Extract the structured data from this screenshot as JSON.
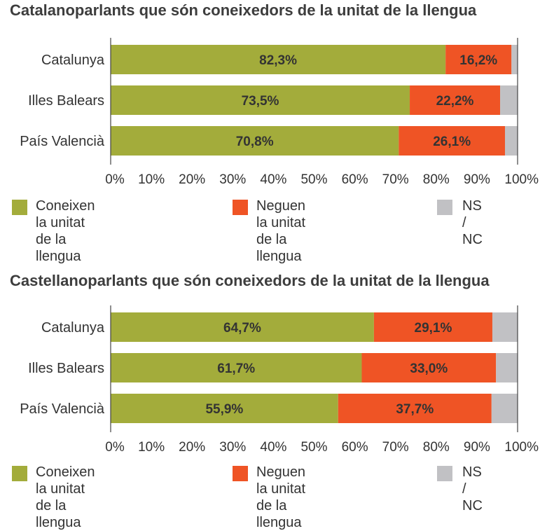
{
  "colors": {
    "green": "#a3ac3b",
    "orange": "#ef5425",
    "grey": "#c1c1c4"
  },
  "legend": {
    "know_line1": "Coneixen la unitat",
    "know_line2": "de la llengua",
    "deny_line1": "Neguen la unitat",
    "deny_line2": "de la llengua",
    "nsnc": "NS / NC"
  },
  "chart_data": [
    {
      "type": "bar",
      "stacked": true,
      "orientation": "horizontal",
      "title": "Catalanoparlants que són coneixedors de la unitat de la llengua",
      "categories": [
        "Catalunya",
        "Illes Balears",
        "País Valencià"
      ],
      "series": [
        {
          "name": "Coneixen la unitat de la llengua",
          "values": [
            82.3,
            73.5,
            70.8
          ],
          "labels": [
            "82,3%",
            "73,5%",
            "70,8%"
          ]
        },
        {
          "name": "Neguen la unitat de la llengua",
          "values": [
            16.2,
            22.2,
            26.1
          ],
          "labels": [
            "16,2%",
            "22,2%",
            "26,1%"
          ]
        },
        {
          "name": "NS / NC",
          "values": [
            1.5,
            4.3,
            3.1
          ]
        }
      ],
      "xticks": [
        "0%",
        "10%",
        "20%",
        "30%",
        "40%",
        "50%",
        "60%",
        "70%",
        "80%",
        "90%",
        "100%"
      ],
      "xlim": [
        0,
        100
      ],
      "legend": "bottom"
    },
    {
      "type": "bar",
      "stacked": true,
      "orientation": "horizontal",
      "title": "Castellanoparlants que són coneixedors de la unitat de la llengua",
      "categories": [
        "Catalunya",
        "Illes Balears",
        "País Valencià"
      ],
      "series": [
        {
          "name": "Coneixen la unitat de la llengua",
          "values": [
            64.7,
            61.7,
            55.9
          ],
          "labels": [
            "64,7%",
            "61,7%",
            "55,9%"
          ]
        },
        {
          "name": "Neguen la unitat de la llengua",
          "values": [
            29.1,
            33.0,
            37.7
          ],
          "labels": [
            "29,1%",
            "33,0%",
            "37,7%"
          ]
        },
        {
          "name": "NS / NC",
          "values": [
            6.2,
            5.3,
            6.4
          ]
        }
      ],
      "xticks": [
        "0%",
        "10%",
        "20%",
        "30%",
        "40%",
        "50%",
        "60%",
        "70%",
        "80%",
        "90%",
        "100%"
      ],
      "xlim": [
        0,
        100
      ],
      "legend": "bottom"
    }
  ]
}
